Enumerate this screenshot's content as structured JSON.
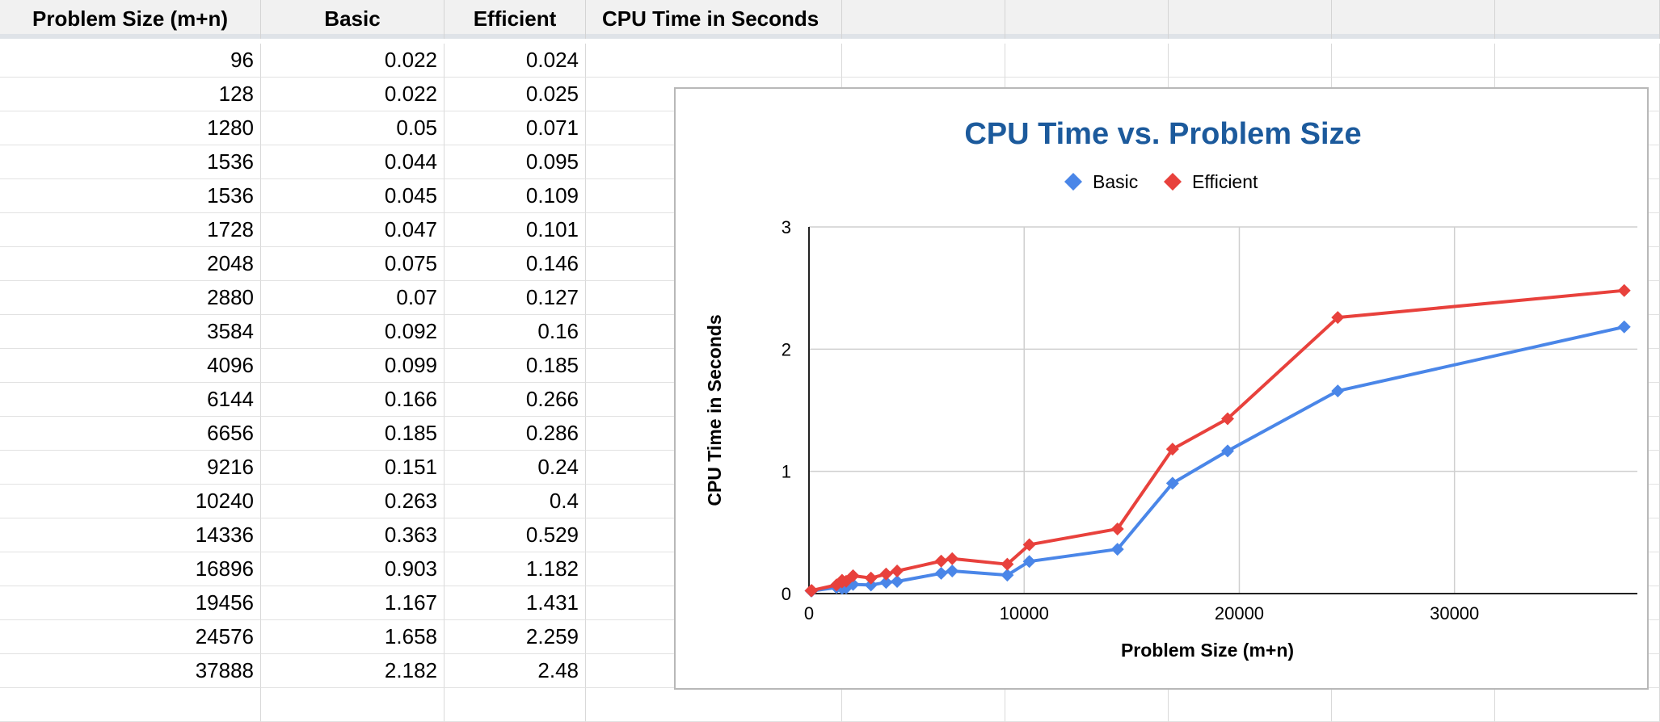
{
  "sheet": {
    "headers": [
      "Problem Size (m+n)",
      "Basic",
      "Efficient",
      "CPU Time in Seconds"
    ],
    "rows": [
      [
        "96",
        "0.022",
        "0.024"
      ],
      [
        "128",
        "0.022",
        "0.025"
      ],
      [
        "1280",
        "0.05",
        "0.071"
      ],
      [
        "1536",
        "0.044",
        "0.095"
      ],
      [
        "1536",
        "0.045",
        "0.109"
      ],
      [
        "1728",
        "0.047",
        "0.101"
      ],
      [
        "2048",
        "0.075",
        "0.146"
      ],
      [
        "2880",
        "0.07",
        "0.127"
      ],
      [
        "3584",
        "0.092",
        "0.16"
      ],
      [
        "4096",
        "0.099",
        "0.185"
      ],
      [
        "6144",
        "0.166",
        "0.266"
      ],
      [
        "6656",
        "0.185",
        "0.286"
      ],
      [
        "9216",
        "0.151",
        "0.24"
      ],
      [
        "10240",
        "0.263",
        "0.4"
      ],
      [
        "14336",
        "0.363",
        "0.529"
      ],
      [
        "16896",
        "0.903",
        "1.182"
      ],
      [
        "19456",
        "1.167",
        "1.431"
      ],
      [
        "24576",
        "1.658",
        "2.259"
      ],
      [
        "37888",
        "2.182",
        "2.48"
      ]
    ]
  },
  "chart_data": {
    "type": "line",
    "title": "CPU Time vs. Problem Size",
    "xlabel": "Problem Size (m+n)",
    "ylabel": "CPU Time in Seconds",
    "xlim": [
      0,
      38500
    ],
    "ylim": [
      0,
      3
    ],
    "xticks": [
      0,
      10000,
      20000,
      30000
    ],
    "yticks": [
      0,
      1,
      2,
      3
    ],
    "grid": true,
    "legend_position": "top-center",
    "x": [
      96,
      128,
      1280,
      1536,
      1536,
      1728,
      2048,
      2880,
      3584,
      4096,
      6144,
      6656,
      9216,
      10240,
      14336,
      16896,
      19456,
      24576,
      37888
    ],
    "series": [
      {
        "name": "Basic",
        "color": "#4a86e8",
        "marker": "diamond",
        "values": [
          0.022,
          0.022,
          0.05,
          0.044,
          0.045,
          0.047,
          0.075,
          0.07,
          0.092,
          0.099,
          0.166,
          0.185,
          0.151,
          0.263,
          0.363,
          0.903,
          1.167,
          1.658,
          2.182
        ]
      },
      {
        "name": "Efficient",
        "color": "#e8413c",
        "marker": "diamond",
        "values": [
          0.024,
          0.025,
          0.071,
          0.095,
          0.109,
          0.101,
          0.146,
          0.127,
          0.16,
          0.185,
          0.266,
          0.286,
          0.24,
          0.4,
          0.529,
          1.182,
          1.431,
          2.259,
          2.48
        ]
      }
    ],
    "title_color": "#1c5a9c"
  }
}
